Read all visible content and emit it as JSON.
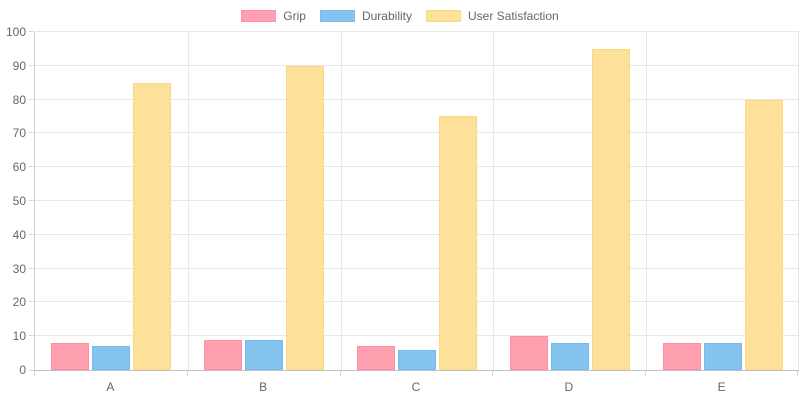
{
  "chart_data": {
    "type": "bar",
    "title": "",
    "categories": [
      "A",
      "B",
      "C",
      "D",
      "E"
    ],
    "series": [
      {
        "name": "Grip",
        "values": [
          8,
          9,
          7,
          10,
          8
        ],
        "fill": "#ffa0b1",
        "border": "#ff8da3"
      },
      {
        "name": "Durability",
        "values": [
          7,
          9,
          6,
          8,
          8
        ],
        "fill": "#86c4f0",
        "border": "#74bbee"
      },
      {
        "name": "User Satisfaction",
        "values": [
          85,
          90,
          75,
          95,
          80
        ],
        "fill": "#fde099",
        "border": "#fcd883"
      }
    ],
    "ylim": [
      0,
      100
    ],
    "ytick_step": 10,
    "ytick_labels": [
      "0",
      "10",
      "20",
      "30",
      "40",
      "50",
      "60",
      "70",
      "80",
      "90",
      "100"
    ],
    "grid": true,
    "legend_position": "top"
  },
  "style_colors": {
    "tick_text": "#666666",
    "gridline": "#e8e8e8",
    "axis_line": "#c2c2c2",
    "background": "#ffffff"
  }
}
